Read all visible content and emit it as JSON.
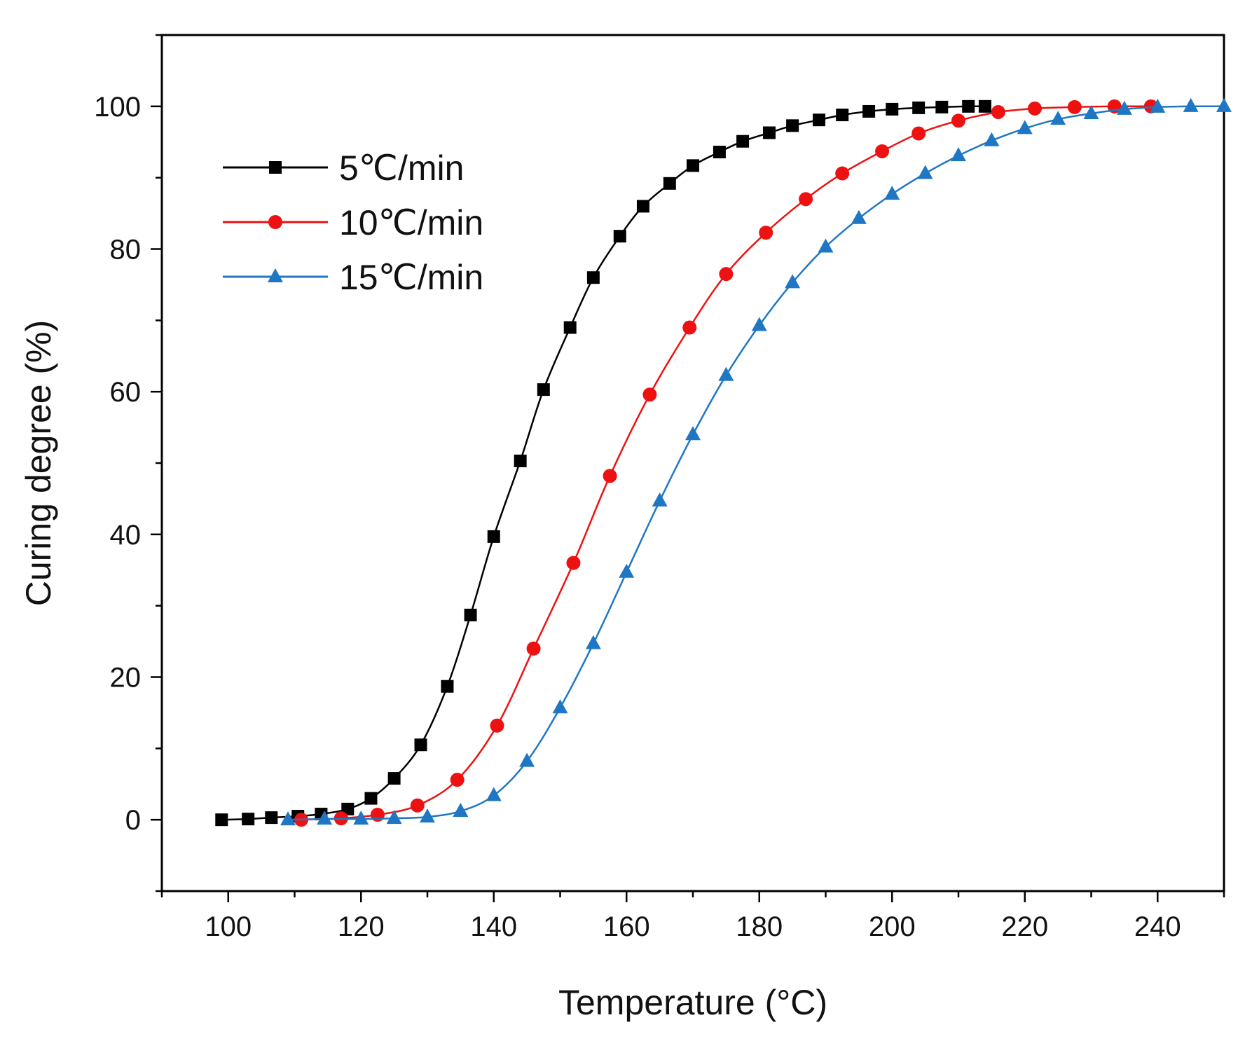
{
  "chart_data": {
    "type": "line",
    "title": "",
    "xlabel": "Temperature (°C)",
    "ylabel": "Curing degree (%)",
    "xlim": [
      90,
      250
    ],
    "ylim": [
      -10,
      110
    ],
    "x_ticks": [
      100,
      120,
      140,
      160,
      180,
      200,
      220,
      240
    ],
    "y_ticks": [
      0,
      20,
      40,
      60,
      80,
      100
    ],
    "grid": false,
    "legend_position": "top-left",
    "series": [
      {
        "name": "5℃/min",
        "color": "#000000",
        "marker": "square",
        "points": [
          [
            99,
            0
          ],
          [
            103,
            0.1
          ],
          [
            106.5,
            0.3
          ],
          [
            110.5,
            0.5
          ],
          [
            114,
            0.8
          ],
          [
            118,
            1.5
          ],
          [
            121.5,
            3
          ],
          [
            125,
            5.8
          ],
          [
            129,
            10.5
          ],
          [
            133,
            18.7
          ],
          [
            136.5,
            28.7
          ],
          [
            140,
            39.7
          ],
          [
            144,
            50.3
          ],
          [
            147.5,
            60.3
          ],
          [
            151.5,
            69
          ],
          [
            155,
            76
          ],
          [
            159,
            81.8
          ],
          [
            162.5,
            86
          ],
          [
            166.5,
            89.2
          ],
          [
            170,
            91.7
          ],
          [
            174,
            93.6
          ],
          [
            177.5,
            95.1
          ],
          [
            181.5,
            96.3
          ],
          [
            185,
            97.3
          ],
          [
            189,
            98.1
          ],
          [
            192.5,
            98.8
          ],
          [
            196.5,
            99.3
          ],
          [
            200,
            99.6
          ],
          [
            204,
            99.8
          ],
          [
            207.5,
            99.9
          ],
          [
            211.5,
            100
          ],
          [
            214,
            100
          ]
        ]
      },
      {
        "name": "10℃/min",
        "color": "#ee1111",
        "marker": "circle",
        "points": [
          [
            111,
            0
          ],
          [
            117,
            0.2
          ],
          [
            122.5,
            0.7
          ],
          [
            128.5,
            2
          ],
          [
            134.5,
            5.6
          ],
          [
            140.5,
            13.2
          ],
          [
            146,
            24
          ],
          [
            152,
            36
          ],
          [
            157.5,
            48.2
          ],
          [
            163.5,
            59.6
          ],
          [
            169.5,
            69
          ],
          [
            175,
            76.5
          ],
          [
            181,
            82.3
          ],
          [
            187,
            87
          ],
          [
            192.5,
            90.6
          ],
          [
            198.5,
            93.7
          ],
          [
            204,
            96.2
          ],
          [
            210,
            98
          ],
          [
            216,
            99.2
          ],
          [
            221.5,
            99.7
          ],
          [
            227.5,
            99.9
          ],
          [
            233.5,
            100
          ],
          [
            239,
            100
          ]
        ]
      },
      {
        "name": "15℃/min",
        "color": "#1f77c4",
        "marker": "triangle",
        "points": [
          [
            109,
            0
          ],
          [
            114.5,
            0.1
          ],
          [
            120,
            0.1
          ],
          [
            125,
            0.2
          ],
          [
            130,
            0.4
          ],
          [
            135,
            1.2
          ],
          [
            140,
            3.4
          ],
          [
            145,
            8.2
          ],
          [
            150,
            15.7
          ],
          [
            155,
            24.7
          ],
          [
            160,
            34.7
          ],
          [
            165,
            44.7
          ],
          [
            170,
            54
          ],
          [
            175,
            62.3
          ],
          [
            180,
            69.3
          ],
          [
            185,
            75.3
          ],
          [
            190,
            80.3
          ],
          [
            195,
            84.3
          ],
          [
            200,
            87.7
          ],
          [
            205,
            90.6
          ],
          [
            210,
            93.1
          ],
          [
            215,
            95.2
          ],
          [
            220,
            96.9
          ],
          [
            225,
            98.2
          ],
          [
            230,
            99
          ],
          [
            235,
            99.6
          ],
          [
            240,
            99.9
          ],
          [
            245,
            100
          ],
          [
            250,
            100
          ]
        ]
      }
    ]
  }
}
